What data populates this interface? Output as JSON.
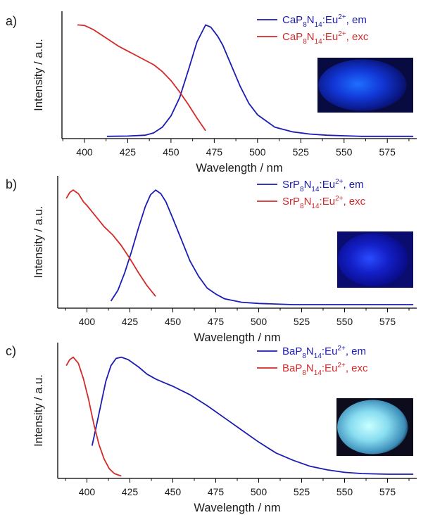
{
  "colors": {
    "em": "#1c1cb4",
    "exc": "#d42a2a",
    "axis": "#000000",
    "text": "#1a1a1a"
  },
  "chart_data": [
    {
      "type": "line",
      "panel_label": "a)",
      "xlabel": "Wavelength / nm",
      "ylabel": "Intensity / a.u.",
      "xlim": [
        387,
        592
      ],
      "ylim": [
        0,
        1.12
      ],
      "x_ticks": [
        400,
        425,
        450,
        475,
        500,
        525,
        550,
        575
      ],
      "y_ticks": [],
      "grid": false,
      "legend_position": "top-right",
      "inset_photo": {
        "glow": "deep blue",
        "core": "#1e70ff",
        "mid": "#1238d8",
        "edge": "#0a1680",
        "background": "#070b40"
      },
      "series": [
        {
          "name": "CaP8N14:Eu2+, em",
          "legend": {
            "base": "CaP",
            "sub1": "8",
            "mid": "N",
            "sub2": "14",
            "dopant": ":Eu",
            "sup": "2+",
            "suffix": ", em"
          },
          "color": "#1c1cb4",
          "x": [
            413,
            425,
            435,
            440,
            445,
            450,
            455,
            460,
            465,
            470,
            473,
            477,
            480,
            485,
            490,
            495,
            500,
            510,
            520,
            530,
            540,
            550,
            560,
            575,
            590
          ],
          "y": [
            0.02,
            0.022,
            0.03,
            0.05,
            0.1,
            0.2,
            0.36,
            0.6,
            0.85,
            1.0,
            0.98,
            0.9,
            0.82,
            0.64,
            0.46,
            0.31,
            0.21,
            0.1,
            0.06,
            0.04,
            0.03,
            0.025,
            0.02,
            0.02,
            0.02
          ]
        },
        {
          "name": "CaP8N14:Eu2+, exc",
          "legend": {
            "base": "CaP",
            "sub1": "8",
            "mid": "N",
            "sub2": "14",
            "dopant": ":Eu",
            "sup": "2+",
            "suffix": ", exc"
          },
          "color": "#d42a2a",
          "x": [
            396,
            400,
            405,
            410,
            415,
            420,
            425,
            430,
            435,
            440,
            445,
            450,
            455,
            460,
            465,
            470
          ],
          "y": [
            1.0,
            0.995,
            0.96,
            0.91,
            0.86,
            0.81,
            0.77,
            0.73,
            0.69,
            0.65,
            0.59,
            0.51,
            0.41,
            0.3,
            0.18,
            0.07
          ]
        }
      ]
    },
    {
      "type": "line",
      "panel_label": "b)",
      "xlabel": "Wavelength / nm",
      "ylabel": "Intensity / a.u.",
      "xlim": [
        383,
        592
      ],
      "ylim": [
        0,
        1.12
      ],
      "x_ticks": [
        400,
        425,
        450,
        475,
        500,
        525,
        550,
        575
      ],
      "y_ticks": [],
      "grid": false,
      "legend_position": "top-right",
      "inset_photo": {
        "glow": "dark blue",
        "core": "#2a4cff",
        "mid": "#1420c8",
        "edge": "#0a0e90",
        "background": "#0a0c70"
      },
      "series": [
        {
          "name": "SrP8N14:Eu2+, em",
          "legend": {
            "base": "SrP",
            "sub1": "8",
            "mid": "N",
            "sub2": "14",
            "dopant": ":Eu",
            "sup": "2+",
            "suffix": ", em"
          },
          "color": "#1c1cb4",
          "x": [
            414,
            418,
            422,
            426,
            430,
            434,
            437,
            440,
            443,
            446,
            450,
            455,
            460,
            465,
            470,
            475,
            480,
            490,
            500,
            520,
            540,
            560,
            590
          ],
          "y": [
            0.06,
            0.15,
            0.3,
            0.48,
            0.68,
            0.86,
            0.96,
            1.0,
            0.97,
            0.9,
            0.76,
            0.58,
            0.4,
            0.27,
            0.17,
            0.12,
            0.08,
            0.05,
            0.04,
            0.03,
            0.03,
            0.03,
            0.03
          ]
        },
        {
          "name": "SrP8N14:Eu2+, exc",
          "legend": {
            "base": "SrP",
            "sub1": "8",
            "mid": "N",
            "sub2": "14",
            "dopant": ":Eu",
            "sup": "2+",
            "suffix": ", exc"
          },
          "color": "#d42a2a",
          "x": [
            388,
            390,
            392,
            395,
            398,
            400,
            405,
            410,
            415,
            420,
            425,
            430,
            435,
            440
          ],
          "y": [
            0.93,
            0.98,
            1.0,
            0.97,
            0.9,
            0.87,
            0.78,
            0.69,
            0.62,
            0.53,
            0.42,
            0.3,
            0.19,
            0.1
          ]
        }
      ]
    },
    {
      "type": "line",
      "panel_label": "c)",
      "xlabel": "Wavelength / nm",
      "ylabel": "Intensity / a.u.",
      "xlim": [
        383,
        592
      ],
      "ylim": [
        0,
        1.12
      ],
      "x_ticks": [
        400,
        425,
        450,
        475,
        500,
        525,
        550,
        575
      ],
      "y_ticks": [],
      "grid": false,
      "legend_position": "top-right",
      "inset_photo": {
        "glow": "light blue-white",
        "core": "#c8ffff",
        "mid": "#88dcf0",
        "edge": "#3a8cb8",
        "background": "#0c0c1c"
      },
      "series": [
        {
          "name": "BaP8N14:Eu2+, em",
          "legend": {
            "base": "BaP",
            "sub1": "8",
            "mid": "N",
            "sub2": "14",
            "dopant": ":Eu",
            "sup": "2+",
            "suffix": ", em"
          },
          "color": "#1c1cb4",
          "x": [
            403,
            405,
            408,
            411,
            414,
            417,
            420,
            424,
            430,
            435,
            440,
            445,
            450,
            460,
            470,
            480,
            490,
            500,
            510,
            520,
            530,
            540,
            550,
            560,
            575,
            590
          ],
          "y": [
            0.27,
            0.4,
            0.6,
            0.8,
            0.93,
            0.99,
            1.0,
            0.98,
            0.92,
            0.86,
            0.82,
            0.79,
            0.76,
            0.69,
            0.6,
            0.5,
            0.4,
            0.3,
            0.21,
            0.15,
            0.1,
            0.07,
            0.05,
            0.04,
            0.035,
            0.035
          ]
        },
        {
          "name": "BaP8N14:Eu2+, exc",
          "legend": {
            "base": "BaP",
            "sub1": "8",
            "mid": "N",
            "sub2": "14",
            "dopant": ":Eu",
            "sup": "2+",
            "suffix": ", exc"
          },
          "color": "#d42a2a",
          "x": [
            388,
            390,
            392,
            395,
            398,
            401,
            404,
            407,
            410,
            413,
            416,
            420
          ],
          "y": [
            0.93,
            0.98,
            1.0,
            0.95,
            0.82,
            0.65,
            0.45,
            0.28,
            0.16,
            0.08,
            0.04,
            0.02
          ]
        }
      ]
    }
  ]
}
